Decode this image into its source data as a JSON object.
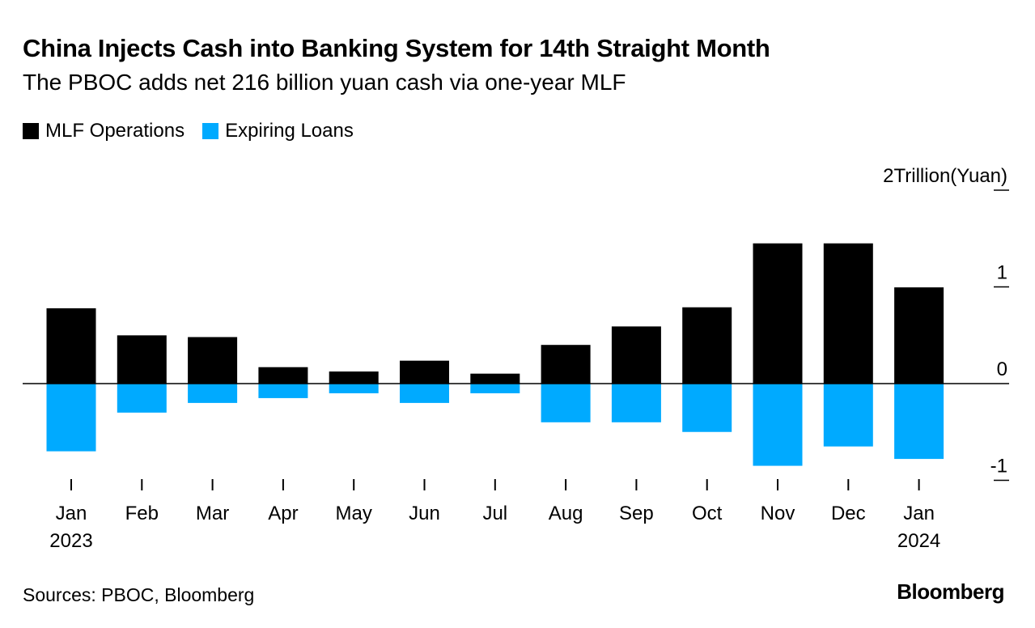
{
  "title": "China Injects Cash into Banking System for 14th Straight Month",
  "subtitle": "The PBOC adds net 216 billion yuan cash via one-year MLF",
  "source": "Sources: PBOC, Bloomberg",
  "logo": "Bloomberg",
  "chart_data": {
    "type": "bar",
    "title": "China Injects Cash into Banking System for 14th Straight Month",
    "ylabel": "Trillion(Yuan)",
    "ylim": [
      -1,
      2
    ],
    "yticks": [
      -1,
      0,
      1,
      2
    ],
    "ytick_labels": [
      "-1",
      "0",
      "1",
      "2Trillion(Yuan)"
    ],
    "categories": [
      "Jan",
      "Feb",
      "Mar",
      "Apr",
      "May",
      "Jun",
      "Jul",
      "Aug",
      "Sep",
      "Oct",
      "Nov",
      "Dec",
      "Jan"
    ],
    "year_labels": {
      "0": "2023",
      "12": "2024"
    },
    "legend_position": "top-left",
    "series": [
      {
        "name": "MLF Operations",
        "color": "#000000",
        "values": [
          0.779,
          0.499,
          0.481,
          0.17,
          0.125,
          0.237,
          0.103,
          0.4,
          0.591,
          0.789,
          1.45,
          1.45,
          0.995
        ]
      },
      {
        "name": "Expiring Loans",
        "color": "#00aaff",
        "values": [
          -0.7,
          -0.3,
          -0.2,
          -0.15,
          -0.1,
          -0.2,
          -0.1,
          -0.4,
          -0.4,
          -0.5,
          -0.85,
          -0.65,
          -0.779
        ]
      }
    ]
  }
}
